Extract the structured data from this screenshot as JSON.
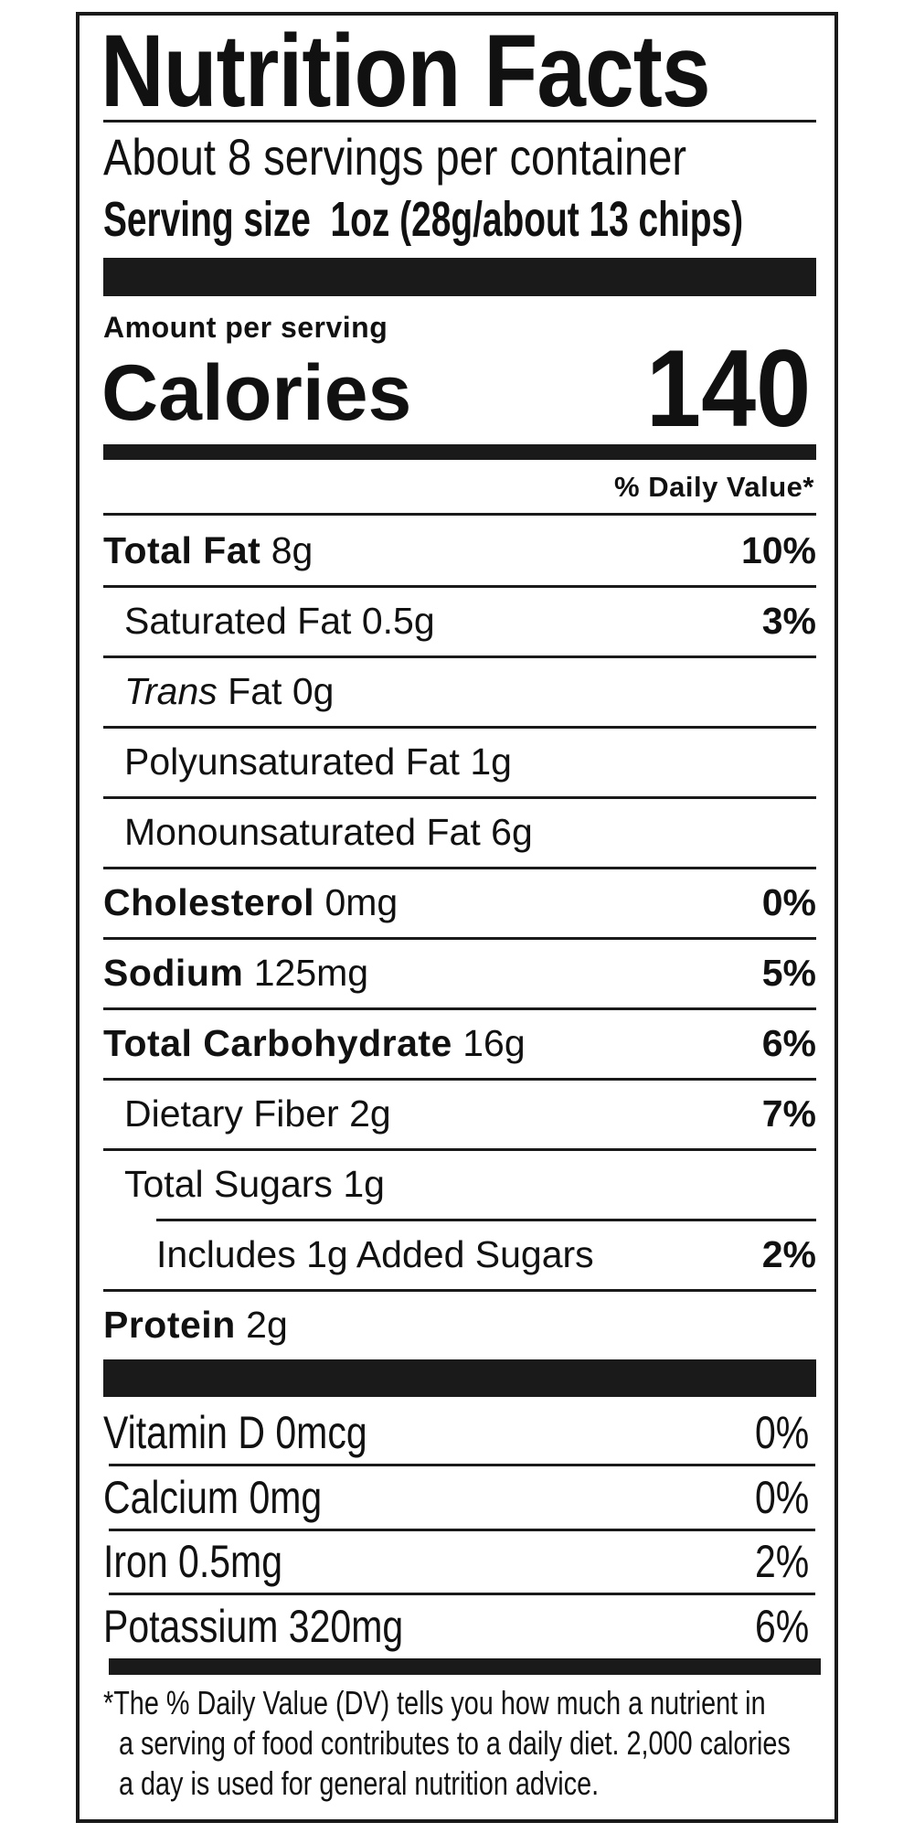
{
  "title": "Nutrition Facts",
  "servings_per_container": "About 8 servings per container",
  "serving_size_label": "Serving size",
  "serving_size_value": "1oz (28g/about 13 chips)",
  "amount_per_serving": "Amount per serving",
  "calories_label": "Calories",
  "calories_value": "140",
  "daily_value_header": "% Daily Value*",
  "nutrients": [
    {
      "name": "Total Fat",
      "amount": "8g",
      "dv": "10%",
      "bold": true,
      "indent": 0
    },
    {
      "name": "Saturated Fat",
      "amount": "0.5g",
      "dv": "3%",
      "bold": false,
      "indent": 1
    },
    {
      "name": "Trans",
      "name_suffix": "Fat",
      "amount": "0g",
      "dv": "",
      "bold": false,
      "indent": 1
    },
    {
      "name": "Polyunsaturated Fat",
      "amount": "1g",
      "dv": "",
      "bold": false,
      "indent": 1
    },
    {
      "name": "Monounsaturated Fat",
      "amount": "6g",
      "dv": "",
      "bold": false,
      "indent": 1
    },
    {
      "name": "Cholesterol",
      "amount": "0mg",
      "dv": "0%",
      "bold": true,
      "indent": 0
    },
    {
      "name": "Sodium",
      "amount": "125mg",
      "dv": "5%",
      "bold": true,
      "indent": 0
    },
    {
      "name": "Total Carbohydrate",
      "amount": "16g",
      "dv": "6%",
      "bold": true,
      "indent": 0
    },
    {
      "name": "Dietary Fiber",
      "amount": "2g",
      "dv": "7%",
      "bold": false,
      "indent": 1
    },
    {
      "name": "Total Sugars",
      "amount": "1g",
      "dv": "",
      "bold": false,
      "indent": 1
    },
    {
      "name": "Includes 1g Added Sugars",
      "amount": "",
      "dv": "2%",
      "bold": false,
      "indent": 2
    },
    {
      "name": "Protein",
      "amount": "2g",
      "dv": "",
      "bold": true,
      "indent": 0
    }
  ],
  "vitamins": [
    {
      "label": "Vitamin D 0mcg",
      "dv": "0%"
    },
    {
      "label": "Calcium 0mg",
      "dv": "0%"
    },
    {
      "label": "Iron 0.5mg",
      "dv": "2%"
    },
    {
      "label": "Potassium 320mg",
      "dv": "6%"
    }
  ],
  "footnote": [
    "*The % Daily Value (DV) tells you how much a nutrient in",
    "a serving of food contributes to a daily diet. 2,000 calories",
    "a day is used for general nutrition advice."
  ]
}
